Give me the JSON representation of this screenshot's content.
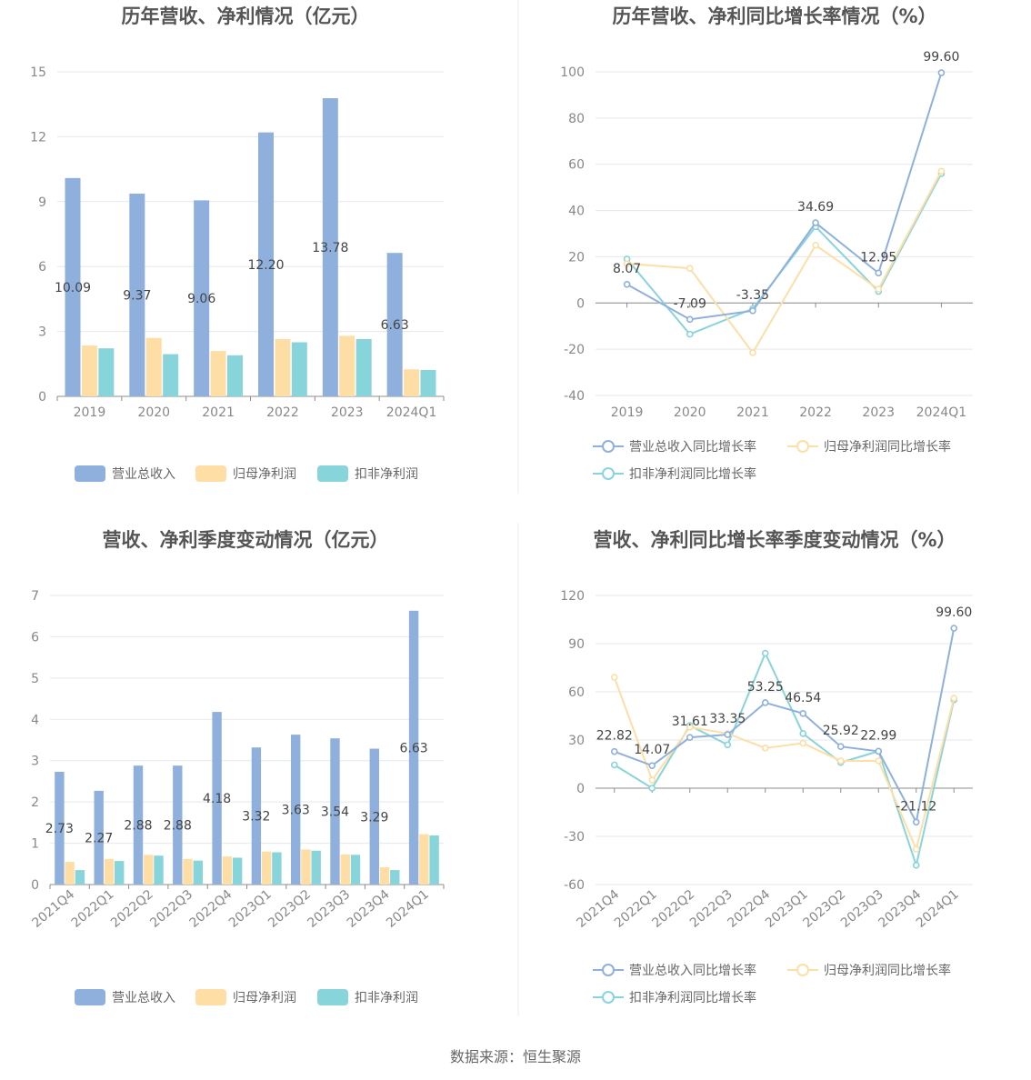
{
  "source": "数据来源：恒生聚源",
  "colors": {
    "revenue": "#8FB0DD",
    "parent": "#FFDEA6",
    "deducted": "#88D4DB",
    "grid": "#E4E7EE",
    "axis": "#8C8C8C",
    "tick_text": "#888888",
    "title": "#555555",
    "label": "#444444"
  },
  "chart_data": [
    {
      "type": "bar",
      "title": "历年营收、净利情况（亿元）",
      "categories": [
        "2019",
        "2020",
        "2021",
        "2022",
        "2023",
        "2024Q1"
      ],
      "series": [
        {
          "name": "营业总收入",
          "values": [
            10.09,
            9.37,
            9.06,
            12.2,
            13.78,
            6.63
          ]
        },
        {
          "name": "归母净利润",
          "values": [
            2.35,
            2.7,
            2.1,
            2.65,
            2.8,
            1.25
          ]
        },
        {
          "name": "扣非净利润",
          "values": [
            2.22,
            1.95,
            1.9,
            2.5,
            2.65,
            1.22
          ]
        }
      ],
      "data_labels": [
        "10.09",
        "9.37",
        "9.06",
        "12.20",
        "13.78",
        "6.63"
      ],
      "yticks": [
        "0",
        "3",
        "6",
        "9",
        "12",
        "15"
      ],
      "ylim": [
        0,
        15
      ],
      "legend": [
        "营业总收入",
        "归母净利润",
        "扣非净利润"
      ],
      "legend_position": "bottom"
    },
    {
      "type": "line",
      "title": "历年营收、净利同比增长率情况（%）",
      "categories": [
        "2019",
        "2020",
        "2021",
        "2022",
        "2023",
        "2024Q1"
      ],
      "series": [
        {
          "name": "营业总收入同比增长率",
          "values": [
            8.07,
            -7.09,
            -3.35,
            34.69,
            12.95,
            99.6
          ]
        },
        {
          "name": "归母净利润同比增长率",
          "values": [
            17,
            15,
            -21.5,
            25,
            6,
            57
          ]
        },
        {
          "name": "扣非净利润同比增长率",
          "values": [
            19,
            -13.5,
            -2.5,
            33,
            5,
            56
          ]
        }
      ],
      "data_labels": [
        "8.07",
        "-7.09",
        "-3.35",
        "34.69",
        "12.95",
        "99.60"
      ],
      "yticks": [
        "-40",
        "-20",
        "0",
        "20",
        "40",
        "60",
        "80",
        "100"
      ],
      "ylim": [
        -40,
        100
      ],
      "legend": [
        "营业总收入同比增长率",
        "归母净利润同比增长率",
        "扣非净利润同比增长率"
      ],
      "legend_position": "bottom"
    },
    {
      "type": "bar",
      "title": "营收、净利季度变动情况（亿元）",
      "categories": [
        "2021Q4",
        "2022Q1",
        "2022Q2",
        "2022Q3",
        "2022Q4",
        "2023Q1",
        "2023Q2",
        "2023Q3",
        "2023Q4",
        "2024Q1"
      ],
      "series": [
        {
          "name": "营业总收入",
          "values": [
            2.73,
            2.27,
            2.88,
            2.88,
            4.18,
            3.32,
            3.63,
            3.54,
            3.29,
            6.63
          ]
        },
        {
          "name": "归母净利润",
          "values": [
            0.55,
            0.62,
            0.72,
            0.62,
            0.68,
            0.8,
            0.85,
            0.73,
            0.42,
            1.22
          ]
        },
        {
          "name": "扣非净利润",
          "values": [
            0.35,
            0.57,
            0.7,
            0.58,
            0.65,
            0.78,
            0.82,
            0.72,
            0.35,
            1.19
          ]
        }
      ],
      "data_labels": [
        "2.73",
        "2.27",
        "2.88",
        "2.88",
        "4.18",
        "3.32",
        "3.63",
        "3.54",
        "3.29",
        "6.63"
      ],
      "yticks": [
        "0",
        "1",
        "2",
        "3",
        "4",
        "5",
        "6",
        "7"
      ],
      "ylim": [
        0,
        7
      ],
      "legend": [
        "营业总收入",
        "归母净利润",
        "扣非净利润"
      ],
      "legend_position": "bottom"
    },
    {
      "type": "line",
      "title": "营收、净利同比增长率季度变动情况（%）",
      "categories": [
        "2021Q4",
        "2022Q1",
        "2022Q2",
        "2022Q3",
        "2022Q4",
        "2023Q1",
        "2023Q2",
        "2023Q3",
        "2023Q4",
        "2024Q1"
      ],
      "series": [
        {
          "name": "营业总收入同比增长率",
          "values": [
            22.82,
            14.07,
            31.61,
            33.35,
            53.25,
            46.54,
            25.92,
            22.99,
            -21.12,
            99.6
          ]
        },
        {
          "name": "归母净利润同比增长率",
          "values": [
            69,
            5,
            38,
            34,
            25,
            28,
            17,
            17,
            -38,
            56
          ]
        },
        {
          "name": "扣非净利润同比增长率",
          "values": [
            14.5,
            0,
            39,
            27,
            84,
            34,
            16,
            23,
            -48,
            55
          ]
        }
      ],
      "data_labels": [
        "22.82",
        "14.07",
        "31.61",
        "33.35",
        "53.25",
        "46.54",
        "25.92",
        "22.99",
        "-21.12",
        "99.60"
      ],
      "yticks": [
        "-60",
        "-30",
        "0",
        "30",
        "60",
        "90",
        "120"
      ],
      "ylim": [
        -60,
        120
      ],
      "legend": [
        "营业总收入同比增长率",
        "归母净利润同比增长率",
        "扣非净利润同比增长率"
      ],
      "legend_position": "bottom"
    }
  ]
}
